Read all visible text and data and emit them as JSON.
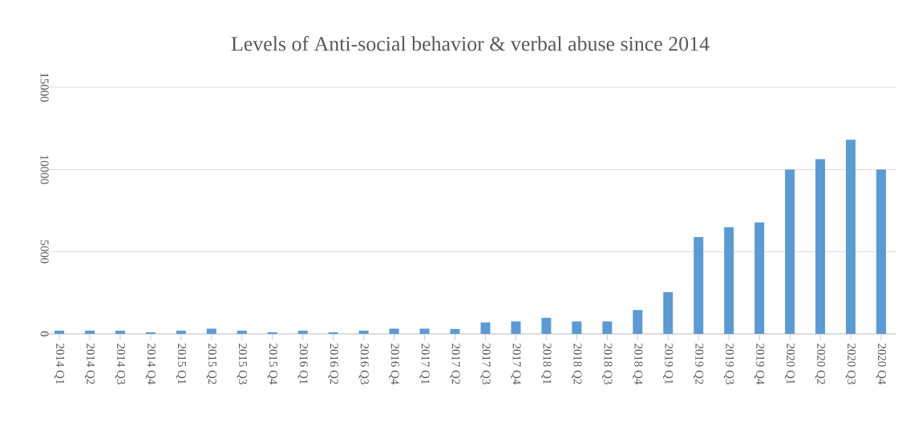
{
  "chart_data": {
    "type": "bar",
    "title": "Levels of Anti-social behavior & verbal abuse since 2014",
    "categories": [
      "2014 Q1",
      "2014 Q2",
      "2014 Q3",
      "2014 Q4",
      "2015 Q1",
      "2015 Q2",
      "2015 Q3",
      "2015 Q4",
      "2016 Q1",
      "2016 Q2",
      "2016 Q3",
      "2016 Q4",
      "2017 Q1",
      "2017 Q2",
      "2017 Q3",
      "2017 Q4",
      "2018 Q1",
      "2018 Q2",
      "2018 Q3",
      "2018 Q4",
      "2019 Q1",
      "2019 Q2",
      "2019 Q3",
      "2019 Q4",
      "2020 Q1",
      "2020 Q2",
      "2020 Q3",
      "2020 Q4"
    ],
    "values": [
      200,
      200,
      200,
      100,
      200,
      320,
      200,
      100,
      200,
      100,
      200,
      320,
      320,
      300,
      700,
      760,
      980,
      760,
      760,
      1450,
      2540,
      5890,
      6490,
      6780,
      10000,
      10630,
      11810,
      10000
    ],
    "color": "#5b9bd5",
    "ylim": [
      0,
      15000
    ],
    "yticks": [
      0,
      5000,
      10000,
      15000
    ],
    "grid": "y"
  }
}
